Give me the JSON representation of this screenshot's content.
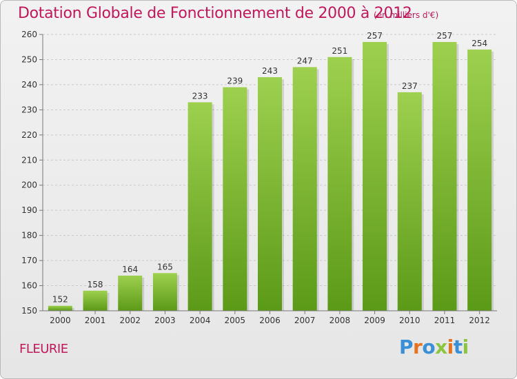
{
  "header": {
    "title": "Dotation Globale de Fonctionnement de 2000 à 2012",
    "unit": "(en milliers d'€)"
  },
  "footer": {
    "commune": "FLEURIE",
    "brand": "Proxiti"
  },
  "colors": {
    "accent": "#c2185b",
    "bar_top": "#9ed04f",
    "bar_bottom": "#5b9a17",
    "brand_letters": [
      "#3a8fd6",
      "#e8731f",
      "#3a8fd6",
      "#8cc63f",
      "#e8731f",
      "#3a8fd6",
      "#8cc63f"
    ]
  },
  "chart_data": {
    "type": "bar",
    "title": "Dotation Globale de Fonctionnement de 2000 à 2012",
    "categories": [
      "2000",
      "2001",
      "2002",
      "2003",
      "2004",
      "2005",
      "2006",
      "2007",
      "2008",
      "2009",
      "2010",
      "2011",
      "2012"
    ],
    "values": [
      152,
      158,
      164,
      165,
      233,
      239,
      243,
      247,
      251,
      257,
      237,
      257,
      254
    ],
    "ylim": [
      150,
      260
    ],
    "yticks": [
      150,
      160,
      170,
      180,
      190,
      200,
      210,
      220,
      230,
      240,
      250,
      260
    ],
    "grid": true,
    "data_labels": true
  }
}
